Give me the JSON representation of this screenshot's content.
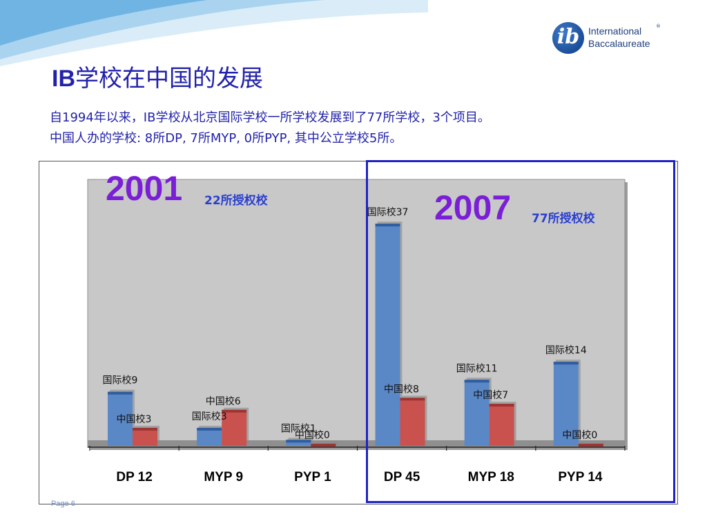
{
  "header": {
    "title_latin": "IB",
    "title_rest": "学校在中国的发展",
    "subtitle_line1": "自1994年以来，IB学校从北京国际学校一所学校发展到了77所学校，3个项目。",
    "subtitle_line2": "中国人办的学校: 8所DP,   7所MYP,  0所PYP, 其中公立学校5所。"
  },
  "logo": {
    "mark": "ib",
    "line1": "International",
    "line2": "Baccalaureate",
    "reg": "®"
  },
  "annotations": {
    "year_2001": "2001",
    "authorized_2001": "22所授权校",
    "year_2007": "2007",
    "authorized_2007": "77所授权校"
  },
  "footer": {
    "page_label": "Page 6"
  },
  "colors": {
    "international": "#5a87c6",
    "chinese": "#c9524f",
    "title": "#2222aa",
    "highlight_box": "#1f22c4",
    "year": "#7a1fd6"
  },
  "chart_data": {
    "type": "bar",
    "categories": [
      "DP 12",
      "MYP 9",
      "PYP 1",
      "DP 45",
      "MYP 18",
      "PYP 14"
    ],
    "series": [
      {
        "values": [
          9,
          3,
          1,
          37,
          11,
          14
        ],
        "labels": [
          "国际校9",
          "国际校3",
          "国际校1",
          "国际校37",
          "国际校11",
          "国际校14"
        ]
      },
      {
        "values": [
          3,
          6,
          0,
          8,
          7,
          0
        ],
        "labels": [
          "中国校3",
          "中国校6",
          "中国校0",
          "中国校8",
          "中国校7",
          "中国校0"
        ]
      }
    ],
    "ylim": [
      0,
      40
    ],
    "grid": false
  }
}
